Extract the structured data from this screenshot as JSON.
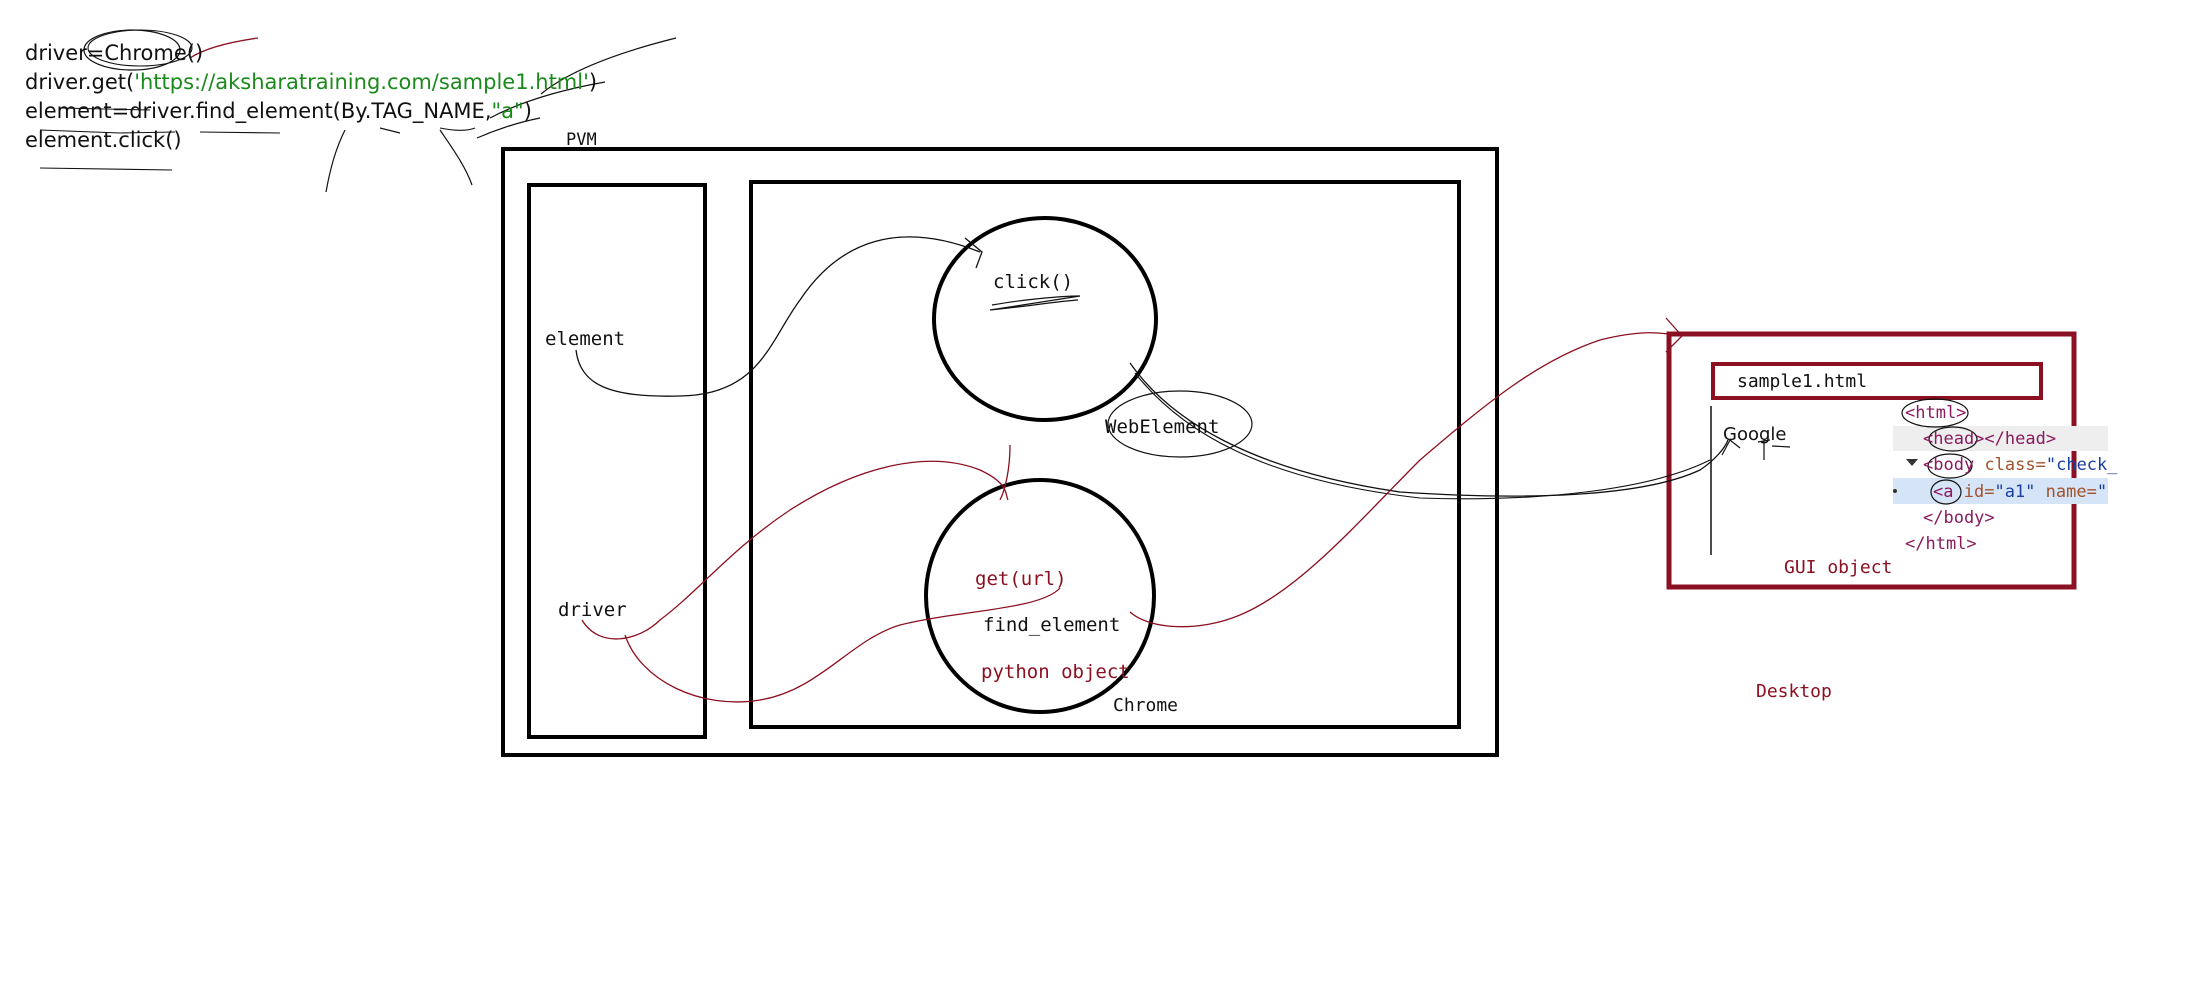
{
  "code_lines": {
    "line1": "driver=Chrome()",
    "line2_prefix": "driver.get(",
    "line2_string": "'https://aksharatraining.com/sample1.html'",
    "line2_suffix": ")",
    "line3_prefix": "element=driver.find_element(By.TAG_NAME,",
    "line3_string": "\"a\"",
    "line3_suffix": ")",
    "line4": "element.click()"
  },
  "labels": {
    "pvm": "PVM",
    "element": "element",
    "driver": "driver",
    "click": "click()",
    "webelement": "WebElement",
    "get_url": "get(url)",
    "find_element": "find_element",
    "python_object": "python object",
    "chrome": "Chrome",
    "sample_file": "sample1.html",
    "google": "Google",
    "gui_object": "GUI object",
    "desktop": "Desktop"
  },
  "devtools": {
    "html_open": "<html>",
    "head_open": "<head>",
    "head_close": "</head>",
    "body_open": "<body",
    "body_attr": "class=",
    "body_val": "\"check_",
    "a_open": "<a",
    "a_attr1": "id=",
    "a_val1": "\"a1\"",
    "a_attr2": "name=",
    "a_val2": "\"",
    "body_close": "</body>",
    "html_close": "</html>"
  },
  "colors": {
    "ink": "#111111",
    "accent_red": "#8b1021",
    "string_green": "#1a8a1a",
    "selected_row": "#d6e4f7"
  }
}
